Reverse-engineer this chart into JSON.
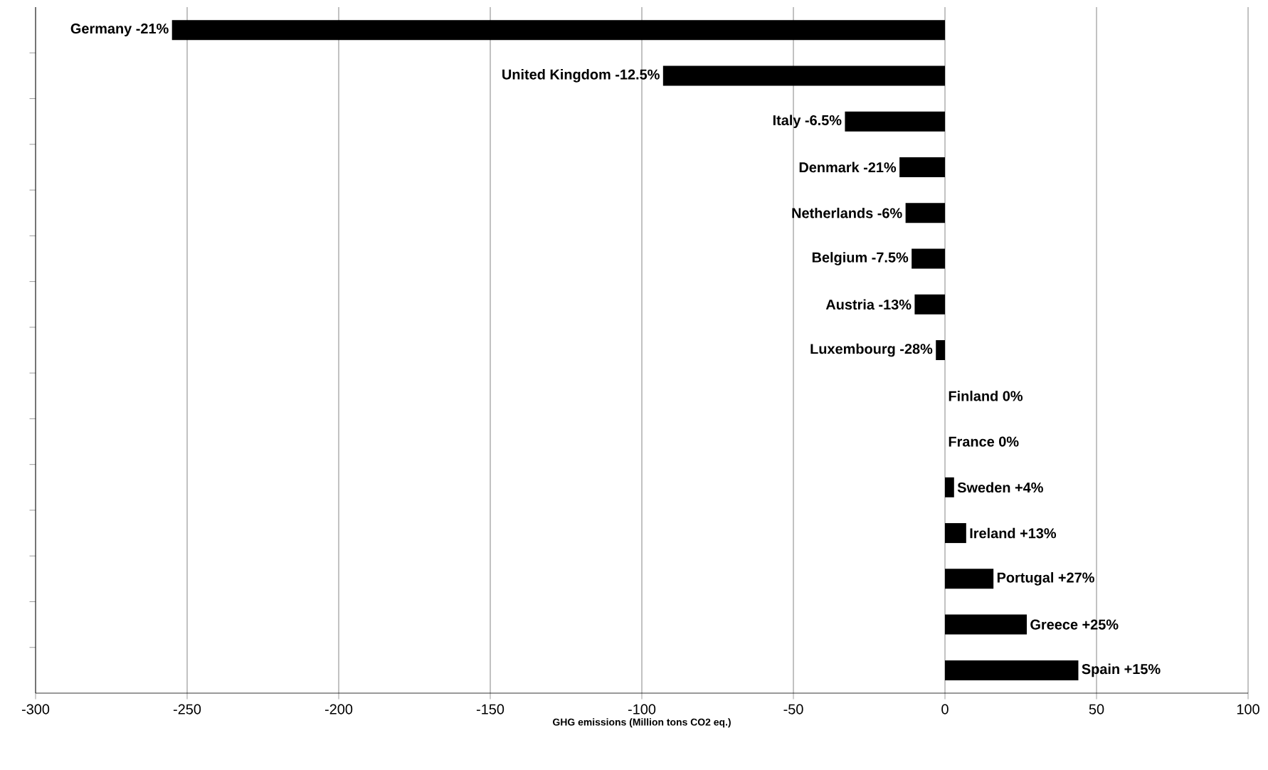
{
  "chart_data": {
    "type": "bar",
    "orientation": "horizontal",
    "xlabel": "GHG emissions (Million tons CO2 eq.)",
    "categories": [
      "Germany -21%",
      "United Kingdom -12.5%",
      "Italy -6.5%",
      "Denmark -21%",
      "Netherlands -6%",
      "Belgium -7.5%",
      "Austria -13%",
      "Luxembourg -28%",
      "Finland 0%",
      "France 0%",
      "Sweden +4%",
      "Ireland +13%",
      "Portugal +27%",
      "Greece +25%",
      "Spain +15%"
    ],
    "values": [
      -255,
      -93,
      -33,
      -15,
      -13,
      -11,
      -10,
      -3,
      0,
      0,
      3,
      7,
      16,
      27,
      44
    ],
    "color": "#000000",
    "xlim": [
      -300,
      100
    ],
    "xticks": [
      -300,
      -250,
      -200,
      -150,
      -100,
      -50,
      0,
      50,
      100
    ],
    "grid": "x",
    "tick_labels": "x"
  }
}
